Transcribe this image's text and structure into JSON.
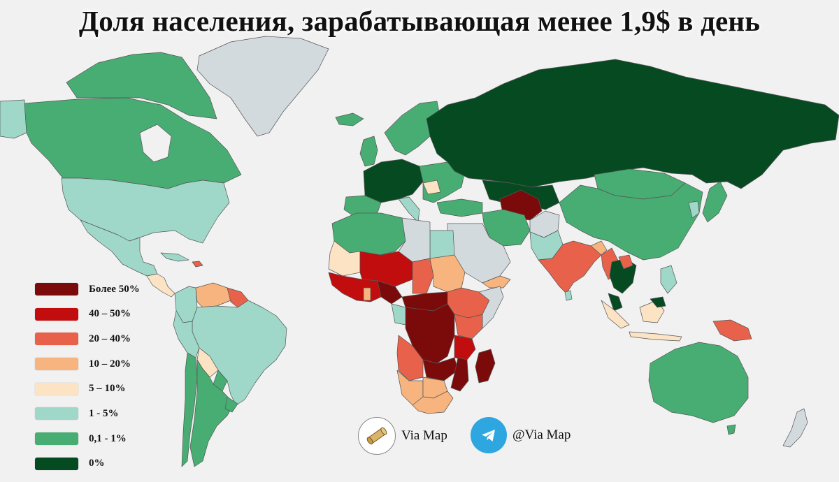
{
  "title": "Доля населения, зарабатывающая менее 1,9$ в день",
  "legend": [
    {
      "label": "Более 50%",
      "color": "#7b0b0b"
    },
    {
      "label": "40 – 50%",
      "color": "#c10d0d"
    },
    {
      "label": "20 – 40%",
      "color": "#e8624b"
    },
    {
      "label": "10 – 20%",
      "color": "#f7b47e"
    },
    {
      "label": "5 – 10%",
      "color": "#fbe3c4"
    },
    {
      "label": "1 - 5%",
      "color": "#9fd8c9"
    },
    {
      "label": "0,1 - 1%",
      "color": "#48ad73"
    },
    {
      "label": "0%",
      "color": "#064a22"
    }
  ],
  "no_data_color": "#d3dade",
  "branding": {
    "site_label": "Via Map",
    "telegram_label": "@Via Map"
  }
}
